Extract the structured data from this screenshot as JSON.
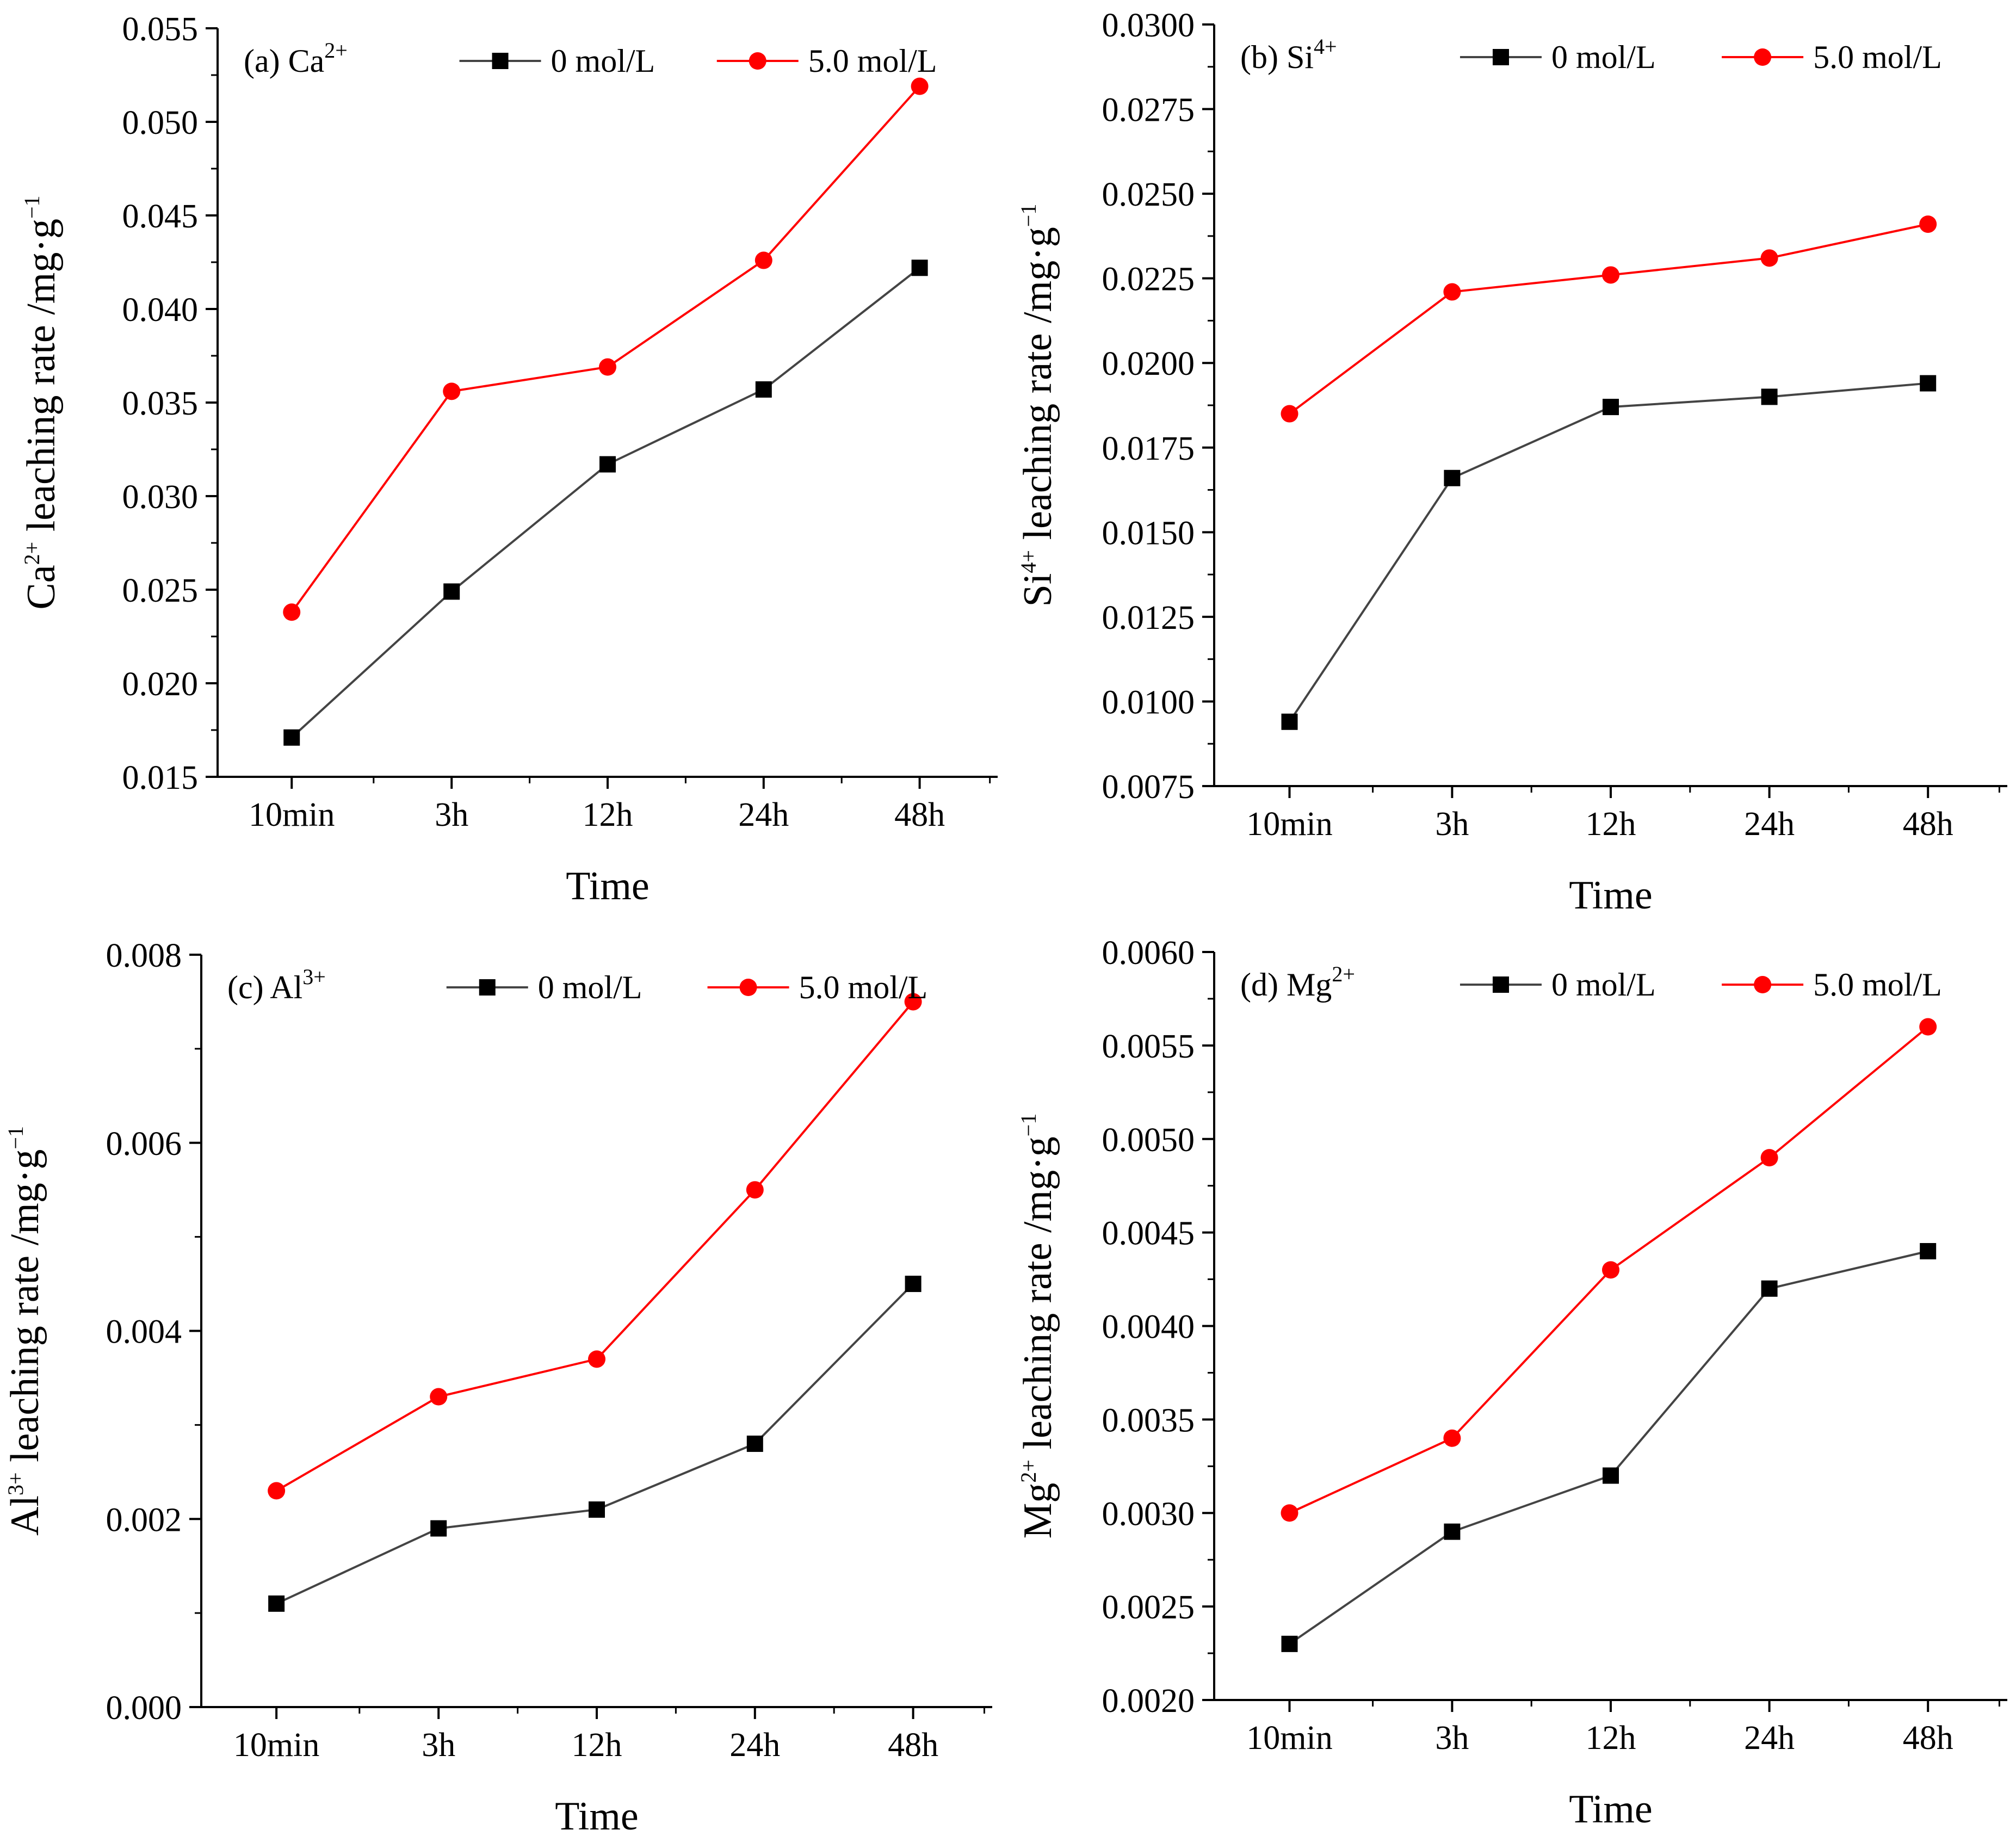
{
  "chart_data": [
    {
      "type": "line",
      "panel_label": "(a) Ca",
      "panel_sup": "2+",
      "categories": [
        "10min",
        "3h",
        "12h",
        "24h",
        "48h"
      ],
      "xlabel": "Time",
      "ylabel_pre": "Ca",
      "ylabel_sup": "2+",
      "ylabel_post": " leaching rate /mg·g",
      "ylabel_unit_sup": "−1",
      "ylim": [
        0.015,
        0.055
      ],
      "yticks": [
        "0.015",
        "0.020",
        "0.025",
        "0.030",
        "0.035",
        "0.040",
        "0.045",
        "0.050",
        "0.055"
      ],
      "series": [
        {
          "name": "0 mol/L",
          "color": "#444444",
          "marker": "square",
          "values": [
            0.0171,
            0.0249,
            0.0317,
            0.0357,
            0.0422
          ]
        },
        {
          "name": "5.0 mol/L",
          "color": "#ff0000",
          "marker": "circle",
          "values": [
            0.0238,
            0.0356,
            0.0369,
            0.0426,
            0.0519
          ]
        }
      ]
    },
    {
      "type": "line",
      "panel_label": "(b) Si",
      "panel_sup": "4+",
      "categories": [
        "10min",
        "3h",
        "12h",
        "24h",
        "48h"
      ],
      "xlabel": "Time",
      "ylabel_pre": "Si",
      "ylabel_sup": "4+",
      "ylabel_post": " leaching rate /mg·g",
      "ylabel_unit_sup": "−1",
      "ylim": [
        0.0075,
        0.03
      ],
      "yticks": [
        "0.0075",
        "0.0100",
        "0.0125",
        "0.0150",
        "0.0175",
        "0.0200",
        "0.0225",
        "0.0250",
        "0.0275",
        "0.0300"
      ],
      "series": [
        {
          "name": "0 mol/L",
          "color": "#444444",
          "marker": "square",
          "values": [
            0.0094,
            0.0166,
            0.0187,
            0.019,
            0.0194
          ]
        },
        {
          "name": "5.0 mol/L",
          "color": "#ff0000",
          "marker": "circle",
          "values": [
            0.0185,
            0.0221,
            0.0226,
            0.0231,
            0.0241
          ]
        }
      ]
    },
    {
      "type": "line",
      "panel_label": "(c) Al",
      "panel_sup": "3+",
      "categories": [
        "10min",
        "3h",
        "12h",
        "24h",
        "48h"
      ],
      "xlabel": "Time",
      "ylabel_pre": "Al",
      "ylabel_sup": "3+",
      "ylabel_post": " leaching rate /mg·g",
      "ylabel_unit_sup": "−1",
      "ylim": [
        0.0,
        0.008
      ],
      "yticks": [
        "0.000",
        "0.002",
        "0.004",
        "0.006",
        "0.008"
      ],
      "series": [
        {
          "name": "0 mol/L",
          "color": "#444444",
          "marker": "square",
          "values": [
            0.0011,
            0.0019,
            0.0021,
            0.0028,
            0.0045
          ]
        },
        {
          "name": "5.0 mol/L",
          "color": "#ff0000",
          "marker": "circle",
          "values": [
            0.0023,
            0.0033,
            0.0037,
            0.0055,
            0.0075
          ]
        }
      ]
    },
    {
      "type": "line",
      "panel_label": "(d) Mg",
      "panel_sup": "2+",
      "categories": [
        "10min",
        "3h",
        "12h",
        "24h",
        "48h"
      ],
      "xlabel": "Time",
      "ylabel_pre": "Mg",
      "ylabel_sup": "2+",
      "ylabel_post": " leaching rate /mg·g",
      "ylabel_unit_sup": "−1",
      "ylim": [
        0.002,
        0.006
      ],
      "yticks": [
        "0.0020",
        "0.0025",
        "0.0030",
        "0.0035",
        "0.0040",
        "0.0045",
        "0.0050",
        "0.0055",
        "0.0060"
      ],
      "series": [
        {
          "name": "0 mol/L",
          "color": "#444444",
          "marker": "square",
          "values": [
            0.0023,
            0.0029,
            0.0032,
            0.0042,
            0.0044
          ]
        },
        {
          "name": "5.0 mol/L",
          "color": "#ff0000",
          "marker": "circle",
          "values": [
            0.003,
            0.0034,
            0.0043,
            0.0049,
            0.0056
          ]
        }
      ]
    }
  ]
}
